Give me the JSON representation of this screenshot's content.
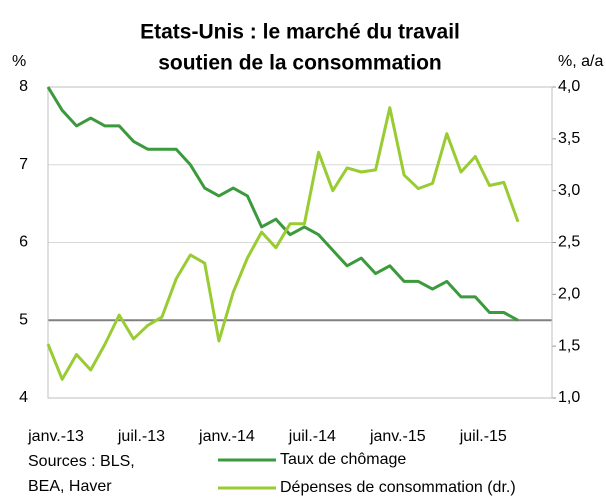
{
  "chart_data": {
    "type": "line",
    "title": [
      "Etats-Unis : le marché du travail",
      "soutien de la consommation"
    ],
    "ylabel": "%",
    "y2label": "%, a/a",
    "source": [
      "Sources :  BLS,",
      "BEA, Haver"
    ],
    "categories": [
      "janv.-13",
      null,
      null,
      null,
      null,
      null,
      "juil.-13",
      null,
      null,
      null,
      null,
      null,
      "janv.-14",
      null,
      null,
      null,
      null,
      null,
      "juil.-14",
      null,
      null,
      null,
      null,
      null,
      "janv.-15",
      null,
      null,
      null,
      null,
      null,
      "juil.-15",
      null,
      null,
      null
    ],
    "series": [
      {
        "name": "Taux de chômage",
        "color": "#3a9a3c",
        "axis": "y",
        "values": [
          8.0,
          7.7,
          7.5,
          7.6,
          7.5,
          7.5,
          7.3,
          7.2,
          7.2,
          7.2,
          7.0,
          6.7,
          6.6,
          6.7,
          6.6,
          6.2,
          6.3,
          6.1,
          6.2,
          6.1,
          5.9,
          5.7,
          5.8,
          5.6,
          5.7,
          5.5,
          5.5,
          5.4,
          5.5,
          5.3,
          5.3,
          5.1,
          5.1,
          5.0
        ]
      },
      {
        "name": "Dépenses de consommation (dr.)",
        "color": "#99cc33",
        "axis": "y2",
        "values": [
          1.52,
          1.18,
          1.42,
          1.27,
          1.52,
          1.8,
          1.57,
          1.7,
          1.78,
          2.15,
          2.38,
          2.3,
          1.55,
          2.02,
          2.35,
          2.6,
          2.45,
          2.68,
          2.68,
          3.37,
          3.0,
          3.22,
          3.18,
          3.2,
          3.8,
          3.15,
          3.02,
          3.07,
          3.55,
          3.18,
          3.33,
          3.05,
          3.08,
          2.7
        ]
      }
    ],
    "ylim": [
      4,
      8
    ],
    "yticks": [
      4,
      5,
      6,
      7,
      8
    ],
    "y2lim": [
      1.0,
      4.0
    ],
    "y2ticks": [
      {
        "value": 1.0,
        "label": "1,0"
      },
      {
        "value": 1.5,
        "label": "1,5"
      },
      {
        "value": 2.0,
        "label": "2,0"
      },
      {
        "value": 2.5,
        "label": "2,5"
      },
      {
        "value": 3.0,
        "label": "3,0"
      },
      {
        "value": 3.5,
        "label": "3,5"
      },
      {
        "value": 4.0,
        "label": "4,0"
      }
    ],
    "hline": 5,
    "grid": true
  }
}
